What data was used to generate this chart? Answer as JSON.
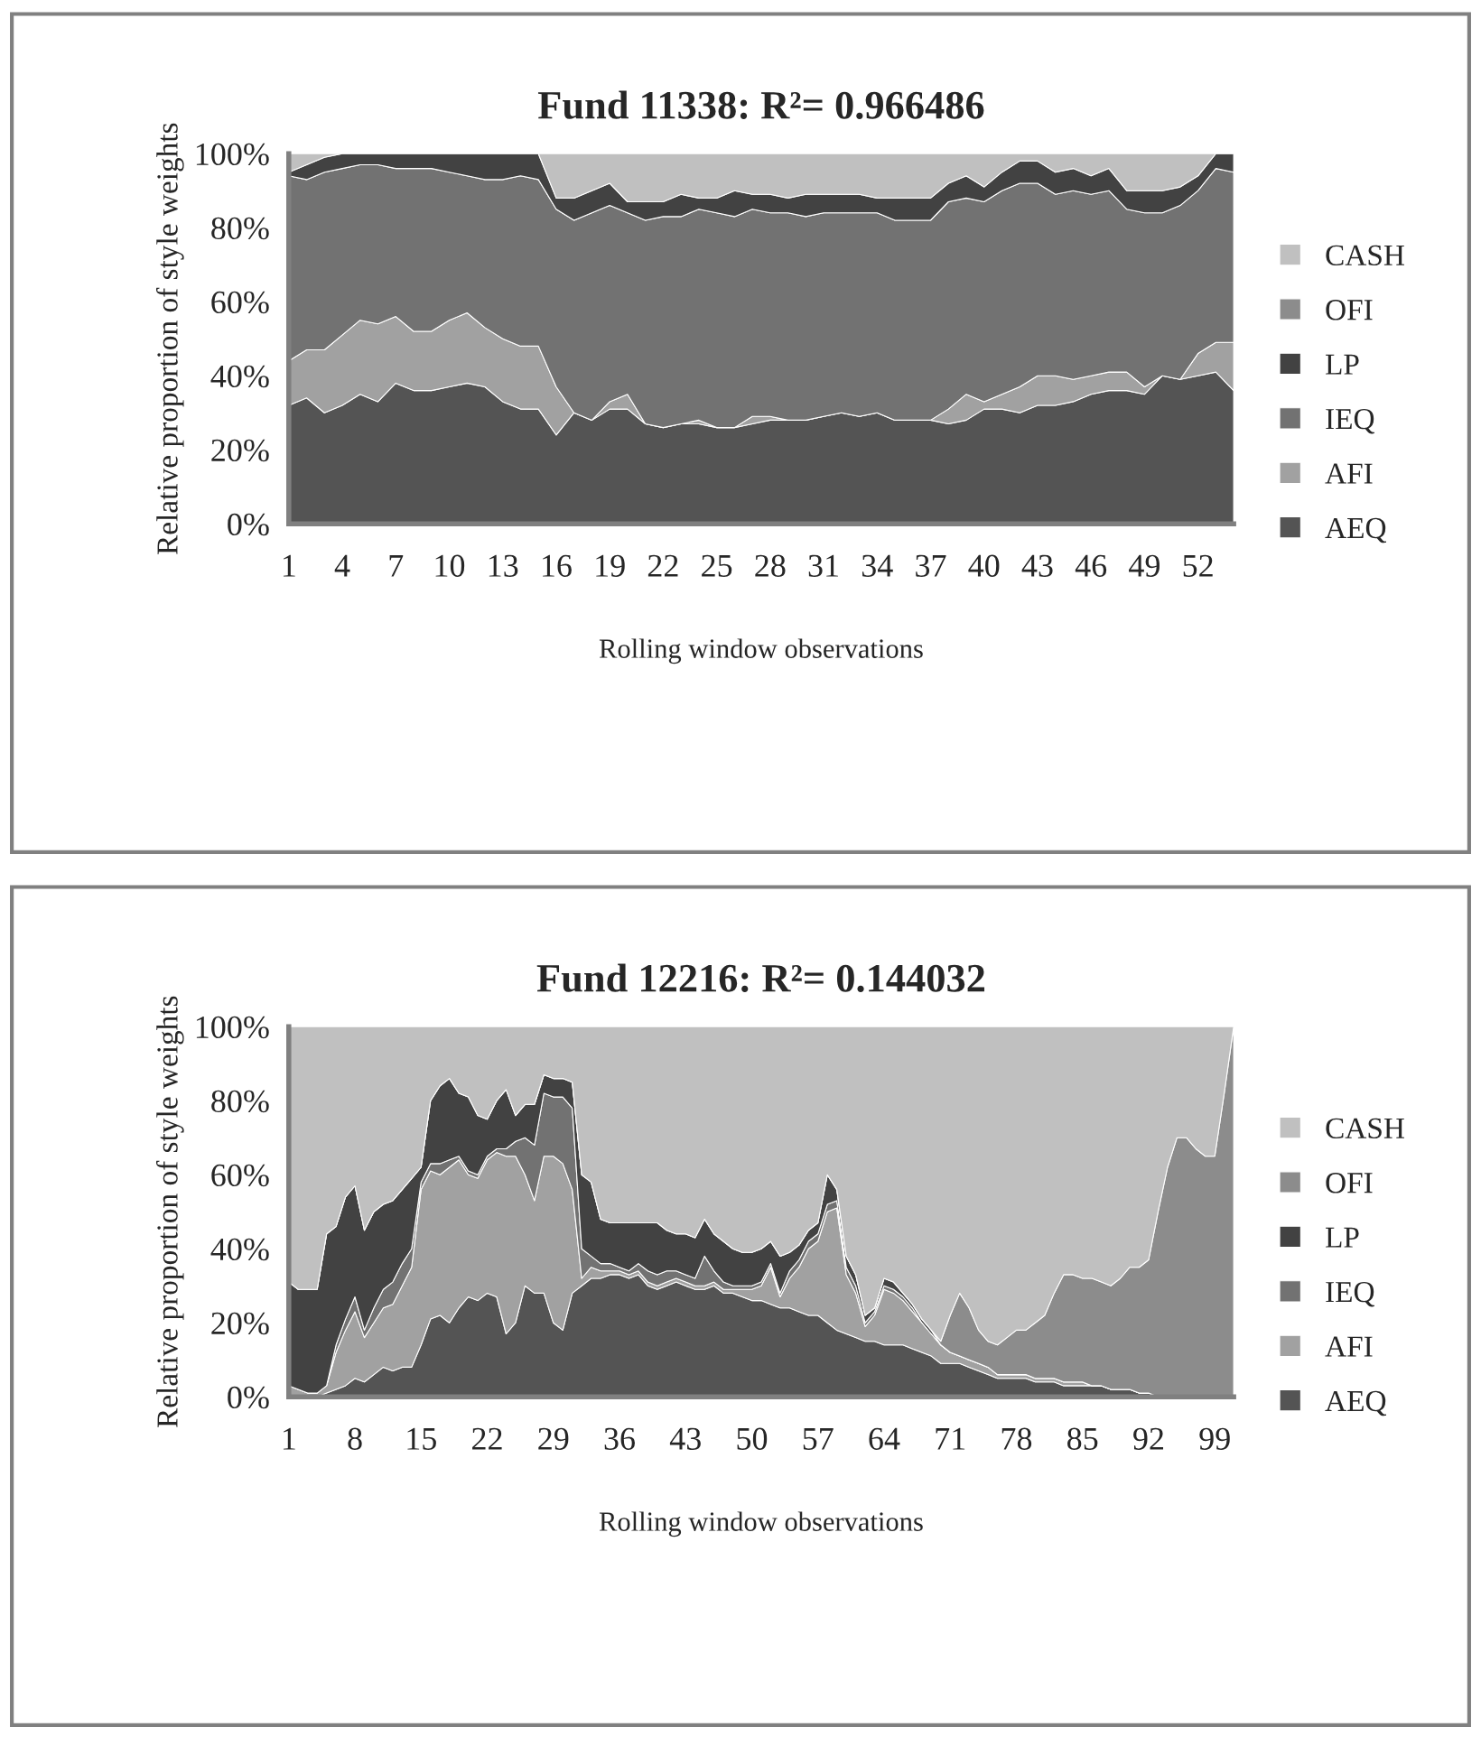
{
  "chart_data": [
    {
      "type": "area",
      "stacked": true,
      "title": "Fund 11338: R²= 0.966486",
      "xlabel": "Rolling window observations",
      "ylabel": "Relative proportion of style weights",
      "legend": "right",
      "grid": false,
      "categories": [
        "1",
        null,
        null,
        "4",
        null,
        null,
        "7",
        null,
        null,
        "10",
        null,
        null,
        "13",
        null,
        null,
        "16",
        null,
        null,
        "19",
        null,
        null,
        "22",
        null,
        null,
        "25",
        null,
        null,
        "28",
        null,
        null,
        "31",
        null,
        null,
        "34",
        null,
        null,
        "37",
        null,
        null,
        "40",
        null,
        null,
        "43",
        null,
        null,
        "46",
        null,
        null,
        "49",
        null,
        null,
        "52",
        null,
        null
      ],
      "ylim": [
        0,
        100
      ],
      "yticks": [
        {
          "value": 0,
          "label": "0%"
        },
        {
          "value": 20,
          "label": "20%"
        },
        {
          "value": 40,
          "label": "40%"
        },
        {
          "value": 60,
          "label": "60%"
        },
        {
          "value": 80,
          "label": "80%"
        },
        {
          "value": 100,
          "label": "100%"
        }
      ],
      "series": [
        {
          "name": "AEQ",
          "color": "#545454",
          "values": [
            32,
            34,
            30,
            32,
            35,
            33,
            38,
            36,
            36,
            37,
            38,
            37,
            33,
            31,
            31,
            24,
            30,
            28,
            31,
            31,
            27,
            26,
            27,
            27,
            26,
            26,
            27,
            28,
            28,
            28,
            29,
            30,
            29,
            30,
            28,
            28,
            28,
            27,
            28,
            31,
            31,
            30,
            32,
            32,
            33,
            35,
            36,
            36,
            35,
            40,
            39,
            40,
            41,
            36
          ]
        },
        {
          "name": "AFI",
          "color": "#a1a1a1",
          "values": [
            12,
            13,
            17,
            19,
            20,
            21,
            18,
            16,
            16,
            18,
            19,
            16,
            17,
            17,
            17,
            13,
            0,
            0,
            2,
            4,
            0,
            0,
            0,
            1,
            0,
            0,
            2,
            1,
            0,
            0,
            0,
            0,
            0,
            0,
            0,
            0,
            0,
            4,
            7,
            2,
            4,
            7,
            8,
            8,
            6,
            5,
            5,
            5,
            2,
            0,
            0,
            6,
            8,
            13
          ]
        },
        {
          "name": "IEQ",
          "color": "#727272",
          "values": [
            50,
            46,
            48,
            45,
            42,
            43,
            40,
            44,
            44,
            40,
            37,
            40,
            43,
            46,
            45,
            48,
            52,
            56,
            53,
            49,
            55,
            57,
            56,
            57,
            58,
            57,
            56,
            55,
            56,
            55,
            55,
            54,
            55,
            54,
            54,
            54,
            54,
            56,
            53,
            54,
            55,
            55,
            52,
            49,
            51,
            49,
            49,
            44,
            47,
            44,
            47,
            44,
            47,
            46
          ]
        },
        {
          "name": "LP",
          "color": "#424242",
          "values": [
            1,
            4,
            4,
            4,
            3,
            3,
            4,
            4,
            4,
            5,
            6,
            7,
            7,
            6,
            7,
            3,
            6,
            6,
            6,
            3,
            5,
            4,
            6,
            3,
            4,
            7,
            4,
            5,
            4,
            6,
            5,
            5,
            5,
            4,
            6,
            6,
            6,
            5,
            6,
            4,
            5,
            6,
            6,
            6,
            6,
            5,
            6,
            5,
            6,
            6,
            5,
            4,
            4,
            5
          ]
        },
        {
          "name": "OFI",
          "color": "#8c8c8c",
          "values": [
            null,
            null,
            null,
            null,
            null,
            null,
            null,
            null,
            null,
            null,
            null,
            null,
            null,
            null,
            null,
            null,
            null,
            null,
            null,
            null,
            null,
            null,
            null,
            null,
            null,
            null,
            null,
            null,
            null,
            null,
            null,
            null,
            null,
            null,
            null,
            null,
            null,
            null,
            null,
            null,
            null,
            null,
            null,
            null,
            null,
            null,
            null,
            null,
            null,
            null,
            null,
            null,
            null,
            null
          ]
        },
        {
          "name": "CASH",
          "color": "#c0c0c0",
          "values": [
            5,
            3,
            1,
            0,
            0,
            0,
            0,
            0,
            0,
            0,
            0,
            0,
            0,
            0,
            0,
            12,
            12,
            10,
            8,
            13,
            13,
            13,
            11,
            12,
            12,
            10,
            11,
            11,
            12,
            11,
            11,
            11,
            11,
            12,
            12,
            12,
            12,
            8,
            6,
            9,
            5,
            2,
            2,
            5,
            4,
            6,
            4,
            10,
            10,
            10,
            9,
            6,
            0,
            0
          ]
        }
      ]
    },
    {
      "type": "area",
      "stacked": true,
      "title": "Fund 12216: R²= 0.144032",
      "xlabel": "Rolling window observations",
      "ylabel": "Relative proportion of style weights",
      "legend": "right",
      "grid": false,
      "categories": [
        "1",
        null,
        null,
        null,
        null,
        null,
        null,
        "8",
        null,
        null,
        null,
        null,
        null,
        null,
        "15",
        null,
        null,
        null,
        null,
        null,
        null,
        "22",
        null,
        null,
        null,
        null,
        null,
        null,
        "29",
        null,
        null,
        null,
        null,
        null,
        null,
        "36",
        null,
        null,
        null,
        null,
        null,
        null,
        "43",
        null,
        null,
        null,
        null,
        null,
        null,
        "50",
        null,
        null,
        null,
        null,
        null,
        null,
        "57",
        null,
        null,
        null,
        null,
        null,
        null,
        "64",
        null,
        null,
        null,
        null,
        null,
        null,
        "71",
        null,
        null,
        null,
        null,
        null,
        null,
        "78",
        null,
        null,
        null,
        null,
        null,
        null,
        "85",
        null,
        null,
        null,
        null,
        null,
        null,
        "92",
        null,
        null,
        null,
        null,
        null,
        null,
        "99",
        null,
        null
      ],
      "ylim": [
        0,
        100
      ],
      "yticks": [
        {
          "value": 0,
          "label": "0%"
        },
        {
          "value": 20,
          "label": "20%"
        },
        {
          "value": 40,
          "label": "40%"
        },
        {
          "value": 60,
          "label": "60%"
        },
        {
          "value": 80,
          "label": "80%"
        },
        {
          "value": 100,
          "label": "100%"
        }
      ],
      "series": [
        {
          "name": "AEQ",
          "color": "#545454",
          "values": [
            0,
            0,
            0,
            0,
            1,
            2,
            3,
            5,
            4,
            6,
            8,
            7,
            8,
            8,
            14,
            21,
            22,
            20,
            24,
            27,
            26,
            28,
            27,
            17,
            20,
            30,
            28,
            28,
            20,
            18,
            28,
            30,
            32,
            32,
            33,
            33,
            32,
            33,
            30,
            29,
            30,
            31,
            30,
            29,
            29,
            30,
            28,
            28,
            27,
            26,
            26,
            25,
            24,
            24,
            23,
            22,
            22,
            20,
            18,
            17,
            16,
            15,
            15,
            14,
            14,
            14,
            13,
            12,
            11,
            9,
            9,
            9,
            8,
            7,
            6,
            5,
            5,
            5,
            5,
            4,
            4,
            4,
            3,
            3,
            3,
            3,
            3,
            2,
            2,
            2,
            1,
            1,
            0,
            0,
            0,
            0,
            0,
            0,
            0,
            0,
            0
          ]
        },
        {
          "name": "AFI",
          "color": "#a1a1a1",
          "values": [
            3,
            2,
            1,
            1,
            2,
            10,
            15,
            18,
            12,
            14,
            16,
            18,
            22,
            27,
            42,
            40,
            38,
            42,
            40,
            33,
            33,
            36,
            39,
            48,
            45,
            30,
            25,
            37,
            45,
            45,
            28,
            2,
            3,
            2,
            1,
            1,
            1,
            1,
            1,
            1,
            1,
            1,
            1,
            1,
            1,
            1,
            1,
            1,
            2,
            3,
            4,
            10,
            3,
            8,
            12,
            18,
            20,
            30,
            33,
            16,
            12,
            4,
            7,
            15,
            14,
            12,
            10,
            8,
            6,
            5,
            3,
            2,
            2,
            2,
            2,
            1,
            1,
            1,
            1,
            1,
            1,
            1,
            1,
            1,
            1,
            0,
            0,
            0,
            0,
            0,
            0,
            0,
            0,
            0,
            0,
            0,
            0,
            0,
            0,
            0,
            0
          ]
        },
        {
          "name": "IEQ",
          "color": "#727272",
          "values": [
            0,
            0,
            0,
            0,
            0,
            2,
            3,
            4,
            2,
            4,
            5,
            6,
            6,
            5,
            2,
            2,
            3,
            2,
            1,
            1,
            1,
            1,
            1,
            2,
            4,
            10,
            15,
            17,
            16,
            18,
            22,
            8,
            3,
            2,
            2,
            1,
            1,
            2,
            3,
            3,
            3,
            2,
            2,
            2,
            8,
            3,
            2,
            1,
            1,
            1,
            1,
            1,
            1,
            2,
            2,
            2,
            2,
            2,
            2,
            2,
            2,
            1,
            1,
            1,
            1,
            1,
            1,
            0,
            0,
            0,
            0,
            0,
            0,
            0,
            0,
            0,
            0,
            0,
            0,
            0,
            0,
            0,
            0,
            0,
            0,
            0,
            0,
            0,
            0,
            0,
            0,
            0,
            0,
            0,
            0,
            0,
            0,
            0,
            0,
            0,
            0
          ]
        },
        {
          "name": "LP",
          "color": "#424242",
          "values": [
            28,
            27,
            28,
            28,
            41,
            32,
            33,
            30,
            27,
            26,
            23,
            22,
            20,
            19,
            4,
            17,
            21,
            22,
            17,
            20,
            16,
            10,
            13,
            16,
            7,
            9,
            11,
            5,
            5,
            5,
            7,
            20,
            20,
            12,
            11,
            12,
            13,
            11,
            13,
            14,
            11,
            10,
            11,
            11,
            10,
            10,
            11,
            10,
            9,
            9,
            9,
            6,
            10,
            5,
            4,
            3,
            3,
            8,
            3,
            3,
            3,
            2,
            1,
            2,
            2,
            1,
            1,
            1,
            1,
            0,
            0,
            0,
            0,
            0,
            0,
            0,
            0,
            0,
            0,
            0,
            0,
            0,
            0,
            0,
            0,
            0,
            0,
            0,
            0,
            0,
            0,
            0,
            0,
            0,
            0,
            0,
            0,
            0,
            0,
            0,
            0
          ]
        },
        {
          "name": "OFI",
          "color": "#8c8c8c",
          "values": [
            0,
            0,
            0,
            0,
            0,
            0,
            0,
            0,
            0,
            0,
            0,
            0,
            0,
            0,
            0,
            0,
            0,
            0,
            0,
            0,
            0,
            0,
            0,
            0,
            0,
            0,
            0,
            0,
            0,
            0,
            0,
            0,
            0,
            0,
            0,
            0,
            0,
            0,
            0,
            0,
            0,
            0,
            0,
            0,
            0,
            0,
            0,
            0,
            0,
            0,
            0,
            0,
            0,
            0,
            0,
            0,
            0,
            0,
            0,
            0,
            0,
            0,
            0,
            0,
            0,
            0,
            0,
            0,
            0,
            1,
            10,
            17,
            14,
            9,
            7,
            8,
            10,
            12,
            12,
            15,
            17,
            23,
            29,
            29,
            28,
            29,
            28,
            28,
            30,
            33,
            34,
            36,
            50,
            62,
            70,
            70,
            67,
            65,
            65,
            82,
            100
          ]
        },
        {
          "name": "CASH",
          "color": "#c0c0c0",
          "values": [
            69,
            71,
            71,
            71,
            56,
            54,
            46,
            43,
            55,
            50,
            48,
            47,
            44,
            41,
            38,
            20,
            16,
            14,
            18,
            19,
            24,
            25,
            20,
            17,
            24,
            21,
            21,
            13,
            14,
            14,
            15,
            40,
            42,
            52,
            53,
            53,
            53,
            53,
            53,
            53,
            55,
            56,
            56,
            57,
            52,
            56,
            58,
            60,
            61,
            61,
            60,
            58,
            62,
            61,
            59,
            55,
            53,
            40,
            44,
            62,
            67,
            78,
            76,
            68,
            69,
            72,
            75,
            79,
            82,
            85,
            78,
            72,
            76,
            82,
            85,
            86,
            84,
            82,
            82,
            80,
            78,
            72,
            67,
            67,
            68,
            68,
            69,
            70,
            68,
            65,
            65,
            63,
            50,
            38,
            30,
            30,
            33,
            35,
            35,
            18,
            0
          ]
        }
      ]
    }
  ]
}
